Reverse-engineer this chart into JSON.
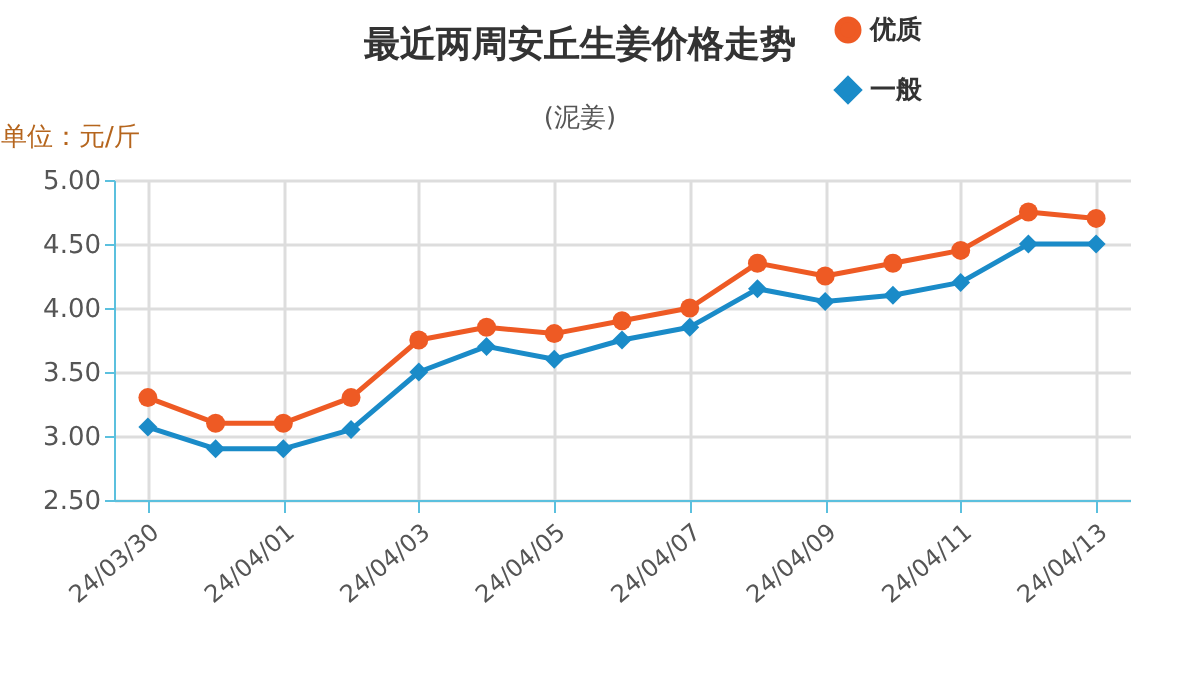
{
  "chart_data": {
    "type": "line",
    "title": "最近两周安丘生姜价格走势",
    "subtitle": "(泥姜)",
    "ylabel": "单位：元/斤",
    "categories": [
      "24/03/30",
      null,
      "24/04/01",
      null,
      "24/04/03",
      null,
      "24/04/05",
      null,
      "24/04/07",
      null,
      "24/04/09",
      null,
      "24/04/11",
      null,
      "24/04/13"
    ],
    "series": [
      {
        "name": "优质",
        "color": "#ee5a24",
        "marker": "circle",
        "values": [
          3.3,
          3.1,
          3.1,
          3.3,
          3.75,
          3.85,
          3.8,
          3.9,
          4.0,
          4.35,
          4.25,
          4.35,
          4.45,
          4.75,
          4.7
        ]
      },
      {
        "name": "一般",
        "color": "#1a8bc8",
        "marker": "diamond",
        "values": [
          3.07,
          2.9,
          2.9,
          3.05,
          3.5,
          3.7,
          3.6,
          3.75,
          3.85,
          4.15,
          4.05,
          4.1,
          4.2,
          4.5,
          4.5
        ]
      }
    ],
    "ylim": [
      2.5,
      5
    ],
    "yticks": [
      {
        "value": 2.5,
        "label": "2.50"
      },
      {
        "value": 3,
        "label": "3.00"
      },
      {
        "value": 3.5,
        "label": "3.50"
      },
      {
        "value": 4,
        "label": "4.00"
      },
      {
        "value": 4.5,
        "label": "4.50"
      },
      {
        "value": 5,
        "label": "5.00"
      }
    ],
    "grid": true,
    "legend": "top right",
    "line_style": "solid"
  }
}
